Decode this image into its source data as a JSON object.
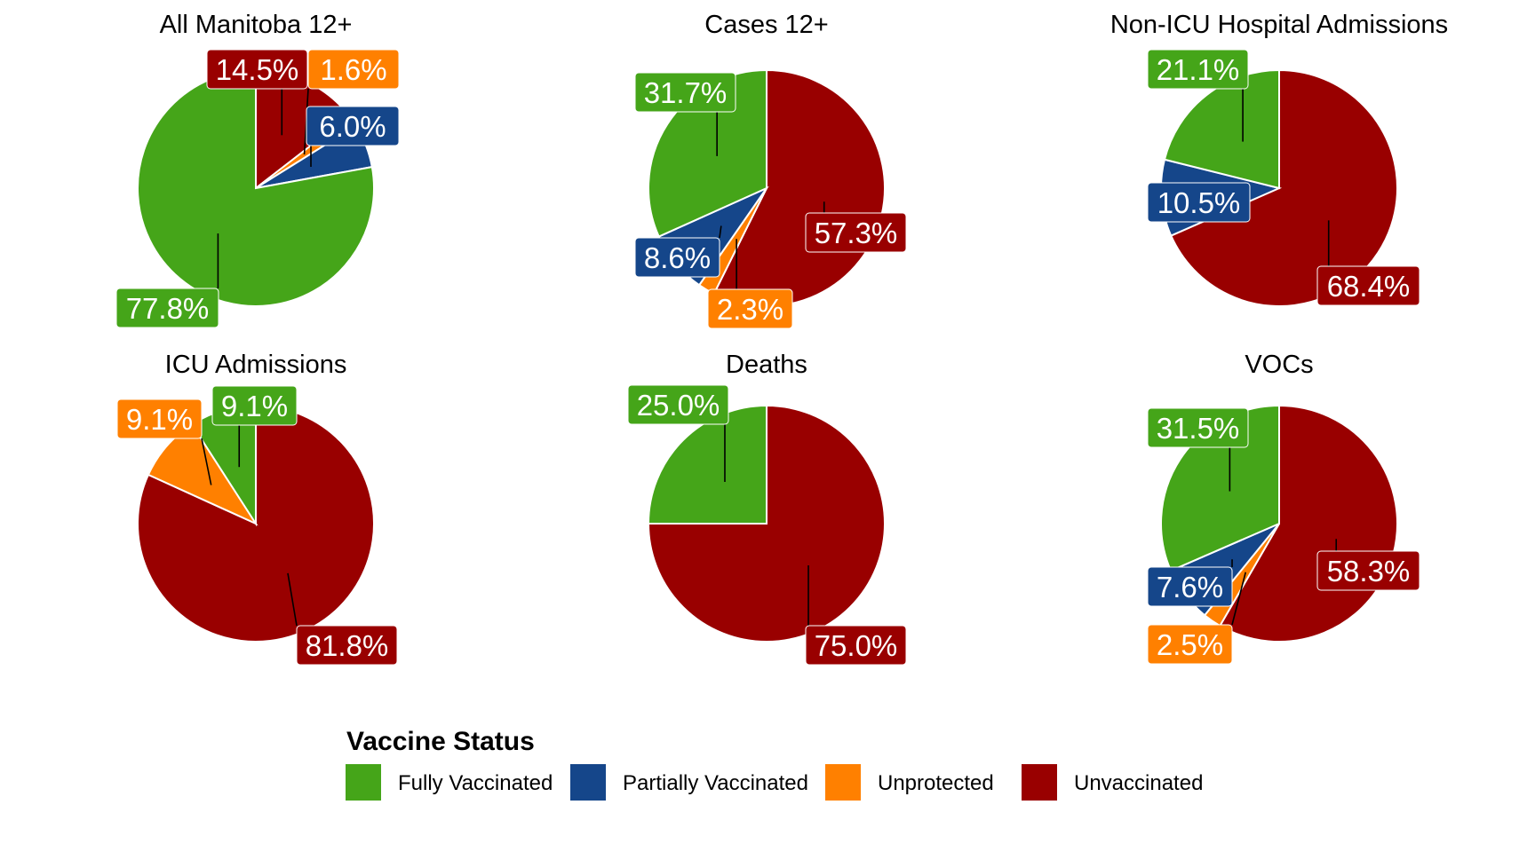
{
  "chart_data": {
    "type": "pie",
    "categories": [
      "Fully Vaccinated",
      "Partially Vaccinated",
      "Unprotected",
      "Unvaccinated"
    ],
    "colors": {
      "Fully Vaccinated": "#45a519",
      "Partially Vaccinated": "#15468a",
      "Unprotected": "#ff8000",
      "Unvaccinated": "#990000"
    },
    "legend": {
      "title": "Vaccine Status",
      "position": "bottom",
      "items": [
        "Fully Vaccinated",
        "Partially Vaccinated",
        "Unprotected",
        "Unvaccinated"
      ]
    },
    "start_angle": "12 o'clock",
    "direction": "clockwise",
    "slice_order": [
      "Unvaccinated",
      "Unprotected",
      "Partially Vaccinated",
      "Fully Vaccinated"
    ],
    "panels": [
      {
        "title": "All Manitoba 12+",
        "slices": [
          {
            "category": "Unvaccinated",
            "value": 14.5,
            "label": "14.5%"
          },
          {
            "category": "Unprotected",
            "value": 1.6,
            "label": "1.6%"
          },
          {
            "category": "Partially Vaccinated",
            "value": 6.0,
            "label": "6.0%"
          },
          {
            "category": "Fully Vaccinated",
            "value": 77.8,
            "label": "77.8%"
          }
        ]
      },
      {
        "title": "Cases 12+",
        "slices": [
          {
            "category": "Unvaccinated",
            "value": 57.3,
            "label": "57.3%"
          },
          {
            "category": "Unprotected",
            "value": 2.3,
            "label": "2.3%"
          },
          {
            "category": "Partially Vaccinated",
            "value": 8.6,
            "label": "8.6%"
          },
          {
            "category": "Fully Vaccinated",
            "value": 31.7,
            "label": "31.7%"
          }
        ]
      },
      {
        "title": "Non-ICU Hospital Admissions",
        "slices": [
          {
            "category": "Unvaccinated",
            "value": 68.4,
            "label": "68.4%"
          },
          {
            "category": "Partially Vaccinated",
            "value": 10.5,
            "label": "10.5%"
          },
          {
            "category": "Fully Vaccinated",
            "value": 21.1,
            "label": "21.1%"
          }
        ]
      },
      {
        "title": "ICU Admissions",
        "slices": [
          {
            "category": "Unvaccinated",
            "value": 81.8,
            "label": "81.8%"
          },
          {
            "category": "Unprotected",
            "value": 9.1,
            "label": "9.1%"
          },
          {
            "category": "Fully Vaccinated",
            "value": 9.1,
            "label": "9.1%"
          }
        ]
      },
      {
        "title": "Deaths",
        "slices": [
          {
            "category": "Unvaccinated",
            "value": 75.0,
            "label": "75.0%"
          },
          {
            "category": "Fully Vaccinated",
            "value": 25.0,
            "label": "25.0%"
          }
        ]
      },
      {
        "title": "VOCs",
        "slices": [
          {
            "category": "Unvaccinated",
            "value": 58.3,
            "label": "58.3%"
          },
          {
            "category": "Unprotected",
            "value": 2.5,
            "label": "2.5%"
          },
          {
            "category": "Partially Vaccinated",
            "value": 7.6,
            "label": "7.6%"
          },
          {
            "category": "Fully Vaccinated",
            "value": 31.5,
            "label": "31.5%"
          }
        ]
      }
    ]
  }
}
